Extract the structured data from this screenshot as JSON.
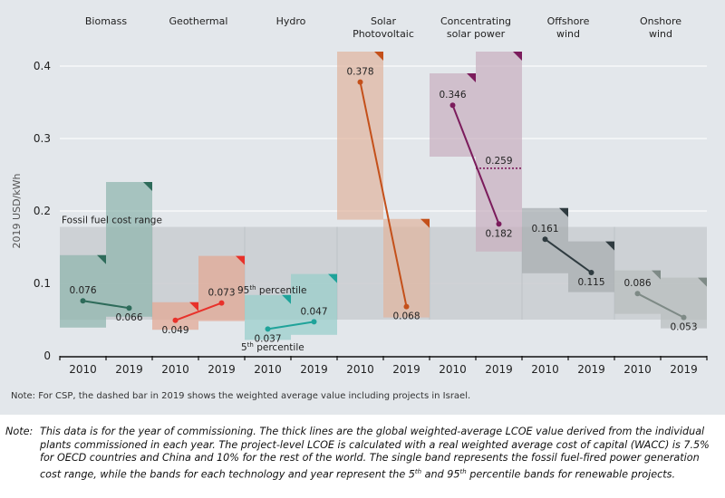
{
  "chart_data": {
    "type": "range-bar",
    "title": "",
    "ylabel": "2019 USD/kWh",
    "ylim": [
      0,
      0.4
    ],
    "yticks": [
      "0",
      "0.1",
      "0.2",
      "0.3",
      "0.4"
    ],
    "ytick_values": [
      0,
      0.1,
      0.2,
      0.3,
      0.4
    ],
    "grid": true,
    "fossil_range": {
      "label": "Fossil fuel cost range",
      "low": 0.05,
      "high": 0.178
    },
    "technologies": [
      {
        "name": "Biomass",
        "color": "#2e6b5a",
        "band_color": "#8fb5ad",
        "years": [
          {
            "year": "2010",
            "p5": 0.039,
            "p95": 0.139,
            "avg": 0.076,
            "label": "0.076"
          },
          {
            "year": "2019",
            "p5": 0.054,
            "p95": 0.24,
            "avg": 0.066,
            "label": "0.066"
          }
        ]
      },
      {
        "name": "Geothermal",
        "color": "#e8312a",
        "band_color": "#e3a893",
        "years": [
          {
            "year": "2010",
            "p5": 0.036,
            "p95": 0.074,
            "avg": 0.049,
            "label": "0.049"
          },
          {
            "year": "2019",
            "p5": 0.048,
            "p95": 0.138,
            "avg": 0.073,
            "label": "0.073"
          }
        ]
      },
      {
        "name": "Hydro",
        "color": "#1fa39a",
        "band_color": "#99cfcb",
        "years": [
          {
            "year": "2010",
            "p5": 0.022,
            "p95": 0.084,
            "avg": 0.037,
            "label": "0.037"
          },
          {
            "year": "2019",
            "p5": 0.029,
            "p95": 0.113,
            "avg": 0.047,
            "label": "0.047"
          }
        ]
      },
      {
        "name": "Solar Photovoltaic",
        "name_lines": [
          "Solar",
          "Photovoltaic"
        ],
        "color": "#c4501a",
        "band_color": "#e0b59f",
        "years": [
          {
            "year": "2010",
            "p5": 0.188,
            "p95": 0.42,
            "avg": 0.378,
            "label": "0.378"
          },
          {
            "year": "2019",
            "p5": 0.053,
            "p95": 0.189,
            "avg": 0.068,
            "label": "0.068"
          }
        ]
      },
      {
        "name": "Concentrating solar power",
        "name_lines": [
          "Concentrating",
          "solar power"
        ],
        "color": "#7b1c5c",
        "band_color": "#c9b0bf",
        "years": [
          {
            "year": "2010",
            "p5": 0.275,
            "p95": 0.39,
            "avg": 0.346,
            "label": "0.346"
          },
          {
            "year": "2019",
            "p5": 0.144,
            "p95": 0.42,
            "avg": 0.182,
            "label": "0.182",
            "dashed_avg": 0.259,
            "dashed_label": "0.259"
          }
        ]
      },
      {
        "name": "Offshore wind",
        "name_lines": [
          "Offshore",
          "wind"
        ],
        "color": "#2f3b40",
        "band_color": "#a7adb0",
        "years": [
          {
            "year": "2010",
            "p5": 0.114,
            "p95": 0.204,
            "avg": 0.161,
            "label": "0.161"
          },
          {
            "year": "2019",
            "p5": 0.088,
            "p95": 0.158,
            "avg": 0.115,
            "label": "0.115"
          }
        ]
      },
      {
        "name": "Onshore wind",
        "name_lines": [
          "Onshore",
          "wind"
        ],
        "color": "#7e8a86",
        "band_color": "#b9bebe",
        "years": [
          {
            "year": "2010",
            "p5": 0.058,
            "p95": 0.118,
            "avg": 0.086,
            "label": "0.086"
          },
          {
            "year": "2019",
            "p5": 0.038,
            "p95": 0.108,
            "avg": 0.053,
            "label": "0.053"
          }
        ]
      }
    ],
    "annotations": {
      "p95": {
        "text": "95",
        "sup": "th",
        "rest": " percentile"
      },
      "p5": {
        "text": "5",
        "sup": "th",
        "rest": " percentile"
      }
    }
  },
  "inner_note": "Note: For CSP, the dashed bar in 2019 shows the weighted average value including projects in Israel.",
  "footnote": {
    "label": "Note:",
    "text_a": "This data is for the year of commissioning. The thick lines are the global weighted-average LCOE value derived from the individual plants commissioned in each year. The project-level LCOE is calculated with a real weighted average cost of capital (WACC) is 7.5% for OECD countries and China and 10% for the rest of the world. The single band represents the fossil fuel-fired power generation cost range, while the bands for each technology and year represent the 5",
    "sup_a": "th",
    "text_b": " and 95",
    "sup_b": "th",
    "text_c": " percentile bands for renewable projects."
  },
  "colors": {
    "panel_bg": "#e3e7eb",
    "fossil_band": "#c9cdd1",
    "gridline": "#f7f8f9",
    "axis": "#111111"
  }
}
